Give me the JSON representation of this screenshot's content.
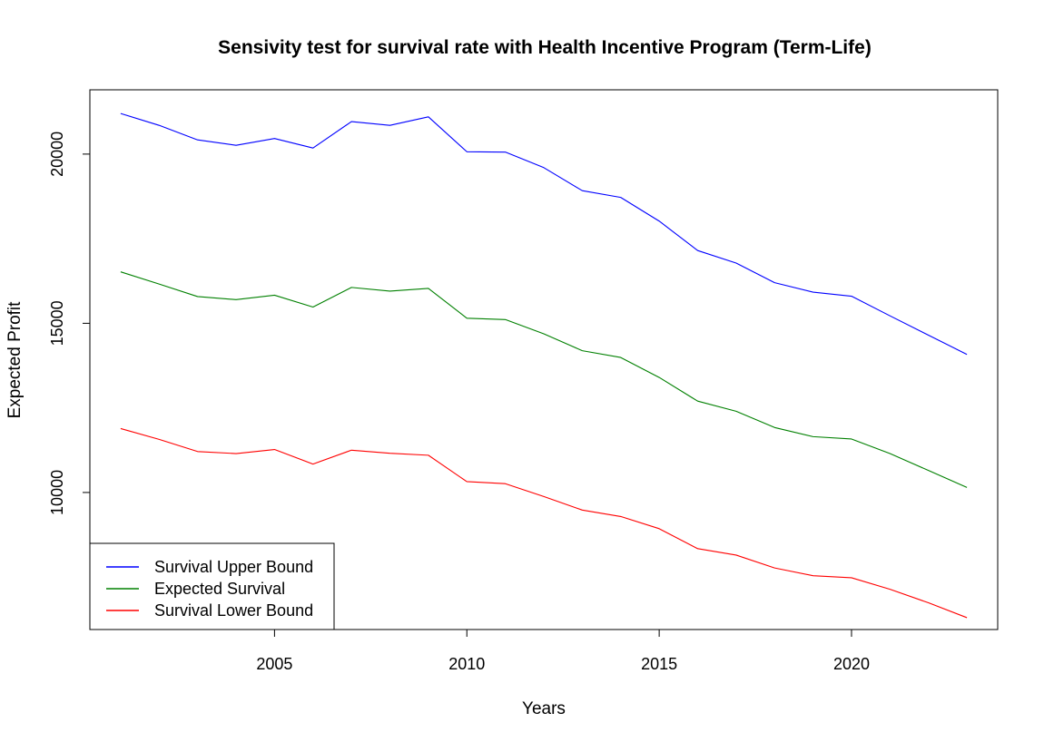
{
  "chart_data": {
    "type": "line",
    "title": "Sensivity test for survival rate with Health Incentive Program (Term-Life)",
    "xlabel": "Years",
    "ylabel": "Expected Profit",
    "xlim": [
      2000.2,
      2023.8
    ],
    "ylim": [
      5950,
      21900
    ],
    "x_ticks": [
      2005,
      2010,
      2015,
      2020
    ],
    "y_ticks": [
      10000,
      15000,
      20000
    ],
    "grid": false,
    "legend_position": "bottom-left",
    "x": [
      2001,
      2002,
      2003,
      2004,
      2005,
      2006,
      2007,
      2008,
      2009,
      2010,
      2011,
      2012,
      2013,
      2014,
      2015,
      2016,
      2017,
      2018,
      2019,
      2020,
      2021,
      2022,
      2023
    ],
    "series": [
      {
        "name": "Survival Upper Bound",
        "color": "#0000ff",
        "values": [
          21200,
          20850,
          20420,
          20260,
          20460,
          20180,
          20960,
          20850,
          21100,
          20070,
          20060,
          19600,
          18920,
          18720,
          18020,
          17150,
          16780,
          16200,
          15920,
          15800,
          15220,
          14650,
          14080
        ]
      },
      {
        "name": "Expected Survival",
        "color": "#008000",
        "values": [
          16520,
          16160,
          15790,
          15700,
          15830,
          15480,
          16060,
          15950,
          16030,
          15150,
          15110,
          14690,
          14190,
          13990,
          13400,
          12700,
          12400,
          11920,
          11650,
          11580,
          11150,
          10650,
          10150
        ]
      },
      {
        "name": "Survival Lower Bound",
        "color": "#ff0000",
        "values": [
          11890,
          11570,
          11210,
          11150,
          11270,
          10840,
          11250,
          11160,
          11100,
          10320,
          10260,
          9880,
          9480,
          9290,
          8930,
          8340,
          8150,
          7770,
          7540,
          7480,
          7140,
          6740,
          6300
        ]
      }
    ]
  }
}
